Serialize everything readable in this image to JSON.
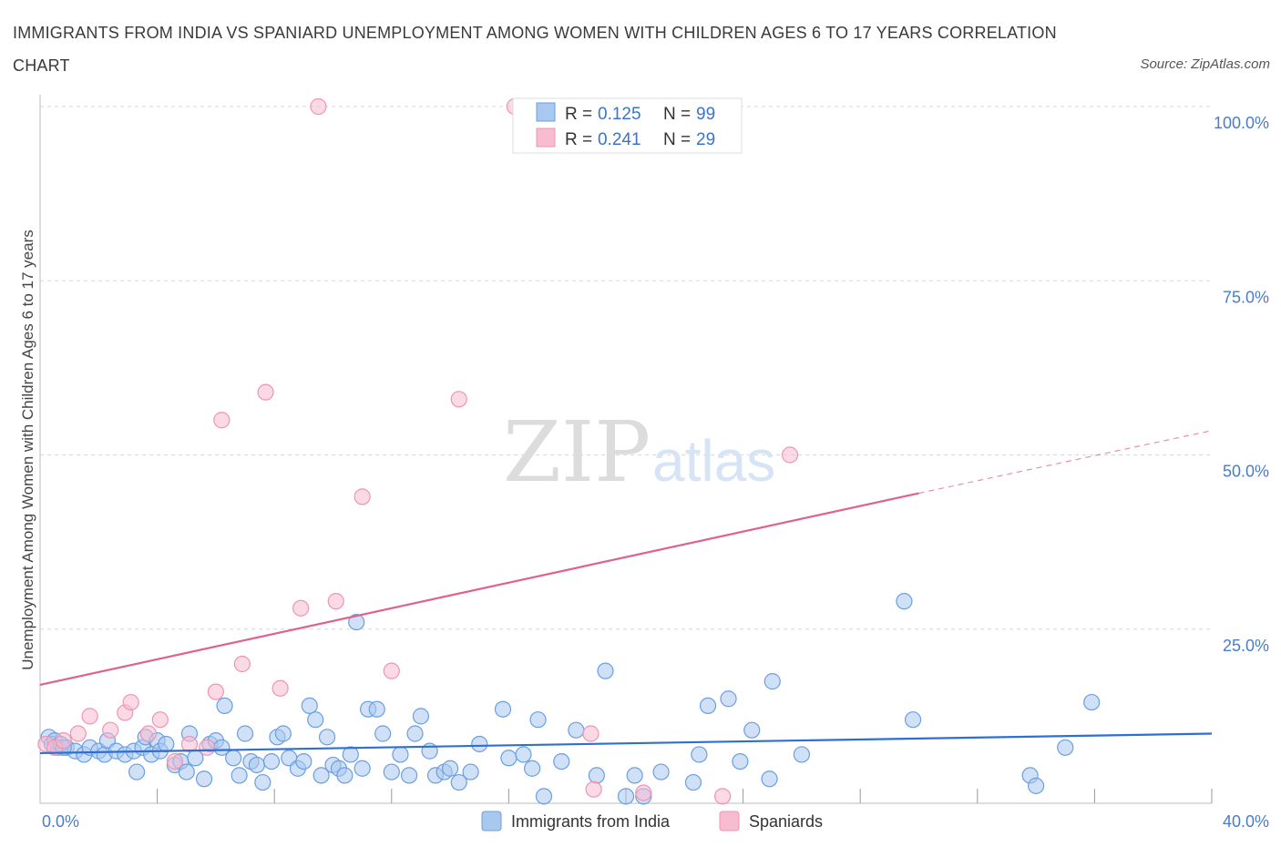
{
  "title": "IMMIGRANTS FROM INDIA VS SPANIARD UNEMPLOYMENT AMONG WOMEN WITH CHILDREN AGES 6 TO 17 YEARS CORRELATION CHART",
  "source": "Source: ZipAtlas.com",
  "watermark": {
    "zip": "ZIP",
    "atlas": "atlas"
  },
  "colors": {
    "india_fill": "#a9c8f0",
    "india_stroke": "#6a9fe0",
    "india_line": "#2f6fd0",
    "spain_fill": "#f7bcd0",
    "spain_stroke": "#ee94b3",
    "spain_line": "#e0608e",
    "grid": "#d8d8d8",
    "tick_label": "#4a7cc9"
  },
  "legend": {
    "rows": [
      {
        "r_label": "R =",
        "r_value": "0.125",
        "n_label": "N =",
        "n_value": "99"
      },
      {
        "r_label": "R =",
        "r_value": "0.241",
        "n_label": "N =",
        "n_value": "29"
      }
    ]
  },
  "chart_data": {
    "type": "scatter",
    "title": "IMMIGRANTS FROM INDIA VS SPANIARD UNEMPLOYMENT AMONG WOMEN WITH CHILDREN AGES 6 TO 17 YEARS CORRELATION CHART",
    "xlabel": "",
    "ylabel": "Unemployment Among Women with Children Ages 6 to 17 years",
    "xlim": [
      0,
      40
    ],
    "ylim": [
      0,
      100
    ],
    "x_tick_labels": [
      "0.0%",
      "40.0%"
    ],
    "y_tick_labels": [
      "25.0%",
      "50.0%",
      "75.0%",
      "100.0%"
    ],
    "y_ticks": [
      25,
      50,
      75,
      100
    ],
    "grid": true,
    "legend_position": "top-center",
    "series": [
      {
        "name": "Immigrants from India",
        "r": 0.125,
        "n": 99,
        "trend": {
          "x": [
            0,
            40
          ],
          "y": [
            7.2,
            10.0
          ]
        },
        "points": [
          [
            0.3,
            9.5
          ],
          [
            0.4,
            8.5
          ],
          [
            0.5,
            9.0
          ],
          [
            0.6,
            8.0
          ],
          [
            0.7,
            8.5
          ],
          [
            0.9,
            8.0
          ],
          [
            1.2,
            7.5
          ],
          [
            1.5,
            7.0
          ],
          [
            1.7,
            8.0
          ],
          [
            2.0,
            7.5
          ],
          [
            2.2,
            7.0
          ],
          [
            2.3,
            9.0
          ],
          [
            2.6,
            7.5
          ],
          [
            2.9,
            7.0
          ],
          [
            3.2,
            7.5
          ],
          [
            3.3,
            4.5
          ],
          [
            3.5,
            8.0
          ],
          [
            3.6,
            9.5
          ],
          [
            3.8,
            7.0
          ],
          [
            4.0,
            9.0
          ],
          [
            4.1,
            7.5
          ],
          [
            4.3,
            8.5
          ],
          [
            4.6,
            5.5
          ],
          [
            4.8,
            6.0
          ],
          [
            5.0,
            4.5
          ],
          [
            5.1,
            10.0
          ],
          [
            5.3,
            6.5
          ],
          [
            5.6,
            3.5
          ],
          [
            5.8,
            8.5
          ],
          [
            6.0,
            9.0
          ],
          [
            6.2,
            8.0
          ],
          [
            6.3,
            14.0
          ],
          [
            6.6,
            6.5
          ],
          [
            6.8,
            4.0
          ],
          [
            7.0,
            10.0
          ],
          [
            7.2,
            6.0
          ],
          [
            7.4,
            5.5
          ],
          [
            7.6,
            3.0
          ],
          [
            7.9,
            6.0
          ],
          [
            8.1,
            9.5
          ],
          [
            8.3,
            10.0
          ],
          [
            8.5,
            6.5
          ],
          [
            8.8,
            5.0
          ],
          [
            9.0,
            6.0
          ],
          [
            9.2,
            14.0
          ],
          [
            9.4,
            12.0
          ],
          [
            9.6,
            4.0
          ],
          [
            9.8,
            9.5
          ],
          [
            10.0,
            5.5
          ],
          [
            10.2,
            5.0
          ],
          [
            10.4,
            4.0
          ],
          [
            10.6,
            7.0
          ],
          [
            10.8,
            26.0
          ],
          [
            11.0,
            5.0
          ],
          [
            11.2,
            13.5
          ],
          [
            11.5,
            13.5
          ],
          [
            11.7,
            10.0
          ],
          [
            12.0,
            4.5
          ],
          [
            12.3,
            7.0
          ],
          [
            12.6,
            4.0
          ],
          [
            12.8,
            10.0
          ],
          [
            13.0,
            12.5
          ],
          [
            13.3,
            7.5
          ],
          [
            13.5,
            4.0
          ],
          [
            13.8,
            4.5
          ],
          [
            14.0,
            5.0
          ],
          [
            14.3,
            3.0
          ],
          [
            14.7,
            4.5
          ],
          [
            15.0,
            8.5
          ],
          [
            15.8,
            13.5
          ],
          [
            16.0,
            6.5
          ],
          [
            16.5,
            7.0
          ],
          [
            16.8,
            5.0
          ],
          [
            17.0,
            12.0
          ],
          [
            17.2,
            1.0
          ],
          [
            17.8,
            6.0
          ],
          [
            18.3,
            10.5
          ],
          [
            19.0,
            4.0
          ],
          [
            19.3,
            19.0
          ],
          [
            20.0,
            1.0
          ],
          [
            20.3,
            4.0
          ],
          [
            20.6,
            1.0
          ],
          [
            21.2,
            4.5
          ],
          [
            22.3,
            3.0
          ],
          [
            22.5,
            7.0
          ],
          [
            22.8,
            14.0
          ],
          [
            23.5,
            15.0
          ],
          [
            23.9,
            6.0
          ],
          [
            24.3,
            10.5
          ],
          [
            24.9,
            3.5
          ],
          [
            25.0,
            17.5
          ],
          [
            26.0,
            7.0
          ],
          [
            29.5,
            29.0
          ],
          [
            29.8,
            12.0
          ],
          [
            33.8,
            4.0
          ],
          [
            34.0,
            2.5
          ],
          [
            35.0,
            8.0
          ],
          [
            35.9,
            14.5
          ],
          [
            0.8,
            8.0
          ]
        ]
      },
      {
        "name": "Spaniards",
        "r": 0.241,
        "n": 29,
        "trend": {
          "x": [
            0,
            30
          ],
          "y": [
            17.0,
            44.5
          ]
        },
        "trend_dashed": {
          "x": [
            30,
            40
          ],
          "y": [
            44.5,
            53.5
          ]
        },
        "points": [
          [
            0.2,
            8.5
          ],
          [
            0.5,
            8.0
          ],
          [
            0.8,
            9.0
          ],
          [
            1.3,
            10.0
          ],
          [
            1.7,
            12.5
          ],
          [
            2.4,
            10.5
          ],
          [
            2.9,
            13.0
          ],
          [
            3.1,
            14.5
          ],
          [
            3.7,
            10.0
          ],
          [
            4.1,
            12.0
          ],
          [
            4.6,
            6.0
          ],
          [
            5.1,
            8.5
          ],
          [
            5.7,
            8.0
          ],
          [
            6.0,
            16.0
          ],
          [
            6.2,
            55.0
          ],
          [
            6.9,
            20.0
          ],
          [
            7.7,
            59.0
          ],
          [
            8.2,
            16.5
          ],
          [
            8.9,
            28.0
          ],
          [
            9.5,
            100.0
          ],
          [
            10.1,
            29.0
          ],
          [
            11.0,
            44.0
          ],
          [
            12.0,
            19.0
          ],
          [
            14.3,
            58.0
          ],
          [
            16.2,
            100.0
          ],
          [
            18.8,
            10.0
          ],
          [
            18.9,
            2.0
          ],
          [
            20.6,
            1.5
          ],
          [
            23.3,
            1.0
          ]
        ]
      }
    ],
    "extra_spaniard_point": [
      25.6,
      50.0
    ]
  },
  "bottom_legend": [
    {
      "label": "Immigrants from India"
    },
    {
      "label": "Spaniards"
    }
  ]
}
